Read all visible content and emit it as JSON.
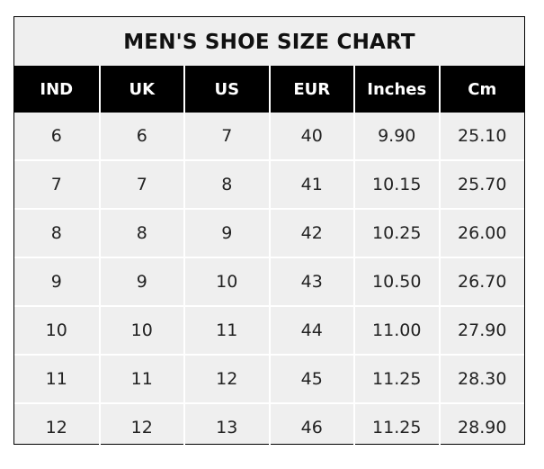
{
  "title": "MEN'S SHOE SIZE CHART",
  "columns": [
    "IND",
    "UK",
    "US",
    "EUR",
    "Inches",
    "Cm"
  ],
  "rows": [
    [
      "6",
      "6",
      "7",
      "40",
      "9.90",
      "25.10"
    ],
    [
      "7",
      "7",
      "8",
      "41",
      "10.15",
      "25.70"
    ],
    [
      "8",
      "8",
      "9",
      "42",
      "10.25",
      "26.00"
    ],
    [
      "9",
      "9",
      "10",
      "43",
      "10.50",
      "26.70"
    ],
    [
      "10",
      "10",
      "11",
      "44",
      "11.00",
      "27.90"
    ],
    [
      "11",
      "11",
      "12",
      "45",
      "11.25",
      "28.30"
    ],
    [
      "12",
      "12",
      "13",
      "46",
      "11.25",
      "28.90"
    ]
  ],
  "colors": {
    "header_bg": "#000000",
    "body_bg": "#efefef",
    "grid": "#ffffff"
  }
}
